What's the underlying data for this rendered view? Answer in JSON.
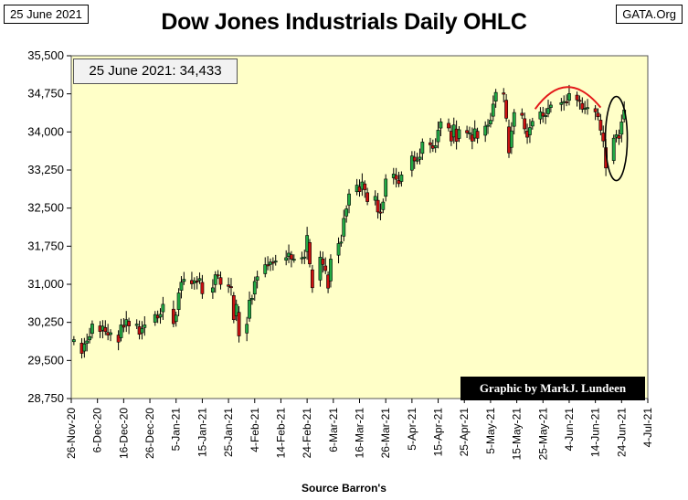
{
  "header": {
    "date_tag": "25 June 2021",
    "source_tag": "GATA.Org",
    "title": "Dow Jones Industrials Daily OHLC"
  },
  "annotations": {
    "value_box": "25 June 2021:  34,433",
    "credit": "Graphic by MarkJ. Lundeen",
    "source": "Source  Barron's"
  },
  "colors": {
    "plot_bg": "#ffffc8",
    "up": "#22aa44",
    "down": "#cc1111",
    "annotation": "#e31a1a"
  },
  "chart_data": {
    "type": "candlestick",
    "title": "Dow Jones Industrials Daily OHLC",
    "xlabel": "",
    "ylabel": "",
    "ylim": [
      28750,
      35500
    ],
    "yticks": [
      28750,
      29500,
      30250,
      31000,
      31750,
      32500,
      33250,
      34000,
      34750,
      35500
    ],
    "ytick_labels": [
      "28,750",
      "29,500",
      "30,250",
      "31,000",
      "31,750",
      "32,500",
      "33,250",
      "34,000",
      "34,750",
      "35,500"
    ],
    "xticks": [
      "2020-11-26",
      "2020-12-06",
      "2020-12-16",
      "2020-12-26",
      "2021-01-05",
      "2021-01-15",
      "2021-01-25",
      "2021-02-04",
      "2021-02-14",
      "2021-02-24",
      "2021-03-06",
      "2021-03-16",
      "2021-03-26",
      "2021-04-05",
      "2021-04-15",
      "2021-04-25",
      "2021-05-05",
      "2021-05-15",
      "2021-05-25",
      "2021-06-04",
      "2021-06-14",
      "2021-06-24",
      "2021-07-04"
    ],
    "xtick_labels": [
      "26-Nov-20",
      "6-Dec-20",
      "16-Dec-20",
      "26-Dec-20",
      "5-Jan-21",
      "15-Jan-21",
      "25-Jan-21",
      "4-Feb-21",
      "14-Feb-21",
      "24-Feb-21",
      "6-Mar-21",
      "16-Mar-21",
      "26-Mar-21",
      "5-Apr-21",
      "15-Apr-21",
      "25-Apr-21",
      "5-May-21",
      "15-May-21",
      "25-May-21",
      "4-Jun-21",
      "14-Jun-21",
      "24-Jun-21",
      "4-Jul-21"
    ],
    "grid": false,
    "closes": [
      [
        "2020-11-27",
        29910
      ],
      [
        "2020-11-30",
        29639
      ],
      [
        "2020-12-01",
        29824
      ],
      [
        "2020-12-02",
        29884
      ],
      [
        "2020-12-03",
        29970
      ],
      [
        "2020-12-04",
        30218
      ],
      [
        "2020-12-07",
        30070
      ],
      [
        "2020-12-08",
        30174
      ],
      [
        "2020-12-09",
        30068
      ],
      [
        "2020-12-10",
        29999
      ],
      [
        "2020-12-11",
        30046
      ],
      [
        "2020-12-14",
        29861
      ],
      [
        "2020-12-15",
        30200
      ],
      [
        "2020-12-16",
        30155
      ],
      [
        "2020-12-17",
        30304
      ],
      [
        "2020-12-18",
        30179
      ],
      [
        "2020-12-21",
        30216
      ],
      [
        "2020-12-22",
        30015
      ],
      [
        "2020-12-23",
        30130
      ],
      [
        "2020-12-24",
        30200
      ],
      [
        "2020-12-28",
        30404
      ],
      [
        "2020-12-29",
        30336
      ],
      [
        "2020-12-30",
        30409
      ],
      [
        "2020-12-31",
        30606
      ],
      [
        "2021-01-04",
        30224
      ],
      [
        "2021-01-05",
        30392
      ],
      [
        "2021-01-06",
        30829
      ],
      [
        "2021-01-07",
        31041
      ],
      [
        "2021-01-08",
        31098
      ],
      [
        "2021-01-11",
        31009
      ],
      [
        "2021-01-12",
        31068
      ],
      [
        "2021-01-13",
        31061
      ],
      [
        "2021-01-14",
        31112
      ],
      [
        "2021-01-15",
        30814
      ],
      [
        "2021-01-19",
        30930
      ],
      [
        "2021-01-20",
        31188
      ],
      [
        "2021-01-21",
        31176
      ],
      [
        "2021-01-22",
        30997
      ],
      [
        "2021-01-25",
        30960
      ],
      [
        "2021-01-26",
        30937
      ],
      [
        "2021-01-27",
        30303
      ],
      [
        "2021-01-28",
        30603
      ],
      [
        "2021-01-29",
        29983
      ],
      [
        "2021-02-01",
        30212
      ],
      [
        "2021-02-02",
        30688
      ],
      [
        "2021-02-03",
        30724
      ],
      [
        "2021-02-04",
        31056
      ],
      [
        "2021-02-05",
        31148
      ],
      [
        "2021-02-08",
        31386
      ],
      [
        "2021-02-09",
        31375
      ],
      [
        "2021-02-10",
        31438
      ],
      [
        "2021-02-11",
        31431
      ],
      [
        "2021-02-12",
        31458
      ],
      [
        "2021-02-16",
        31523
      ],
      [
        "2021-02-17",
        31613
      ],
      [
        "2021-02-18",
        31494
      ],
      [
        "2021-02-19",
        31494
      ],
      [
        "2021-02-22",
        31522
      ],
      [
        "2021-02-23",
        31537
      ],
      [
        "2021-02-24",
        31962
      ],
      [
        "2021-02-25",
        31402
      ],
      [
        "2021-02-26",
        30932
      ],
      [
        "2021-03-01",
        31535
      ],
      [
        "2021-03-02",
        31391
      ],
      [
        "2021-03-03",
        31270
      ],
      [
        "2021-03-04",
        30924
      ],
      [
        "2021-03-05",
        31496
      ],
      [
        "2021-03-08",
        31802
      ],
      [
        "2021-03-09",
        31832
      ],
      [
        "2021-03-10",
        32297
      ],
      [
        "2021-03-11",
        32485
      ],
      [
        "2021-03-12",
        32779
      ],
      [
        "2021-03-15",
        32953
      ],
      [
        "2021-03-16",
        32825
      ],
      [
        "2021-03-17",
        33015
      ],
      [
        "2021-03-18",
        32862
      ],
      [
        "2021-03-19",
        32628
      ],
      [
        "2021-03-22",
        32731
      ],
      [
        "2021-03-23",
        32423
      ],
      [
        "2021-03-24",
        32420
      ],
      [
        "2021-03-25",
        32619
      ],
      [
        "2021-03-26",
        33072
      ],
      [
        "2021-03-29",
        33171
      ],
      [
        "2021-03-30",
        33067
      ],
      [
        "2021-03-31",
        32982
      ],
      [
        "2021-04-01",
        33153
      ],
      [
        "2021-04-05",
        33527
      ],
      [
        "2021-04-06",
        33430
      ],
      [
        "2021-04-07",
        33446
      ],
      [
        "2021-04-08",
        33503
      ],
      [
        "2021-04-09",
        33801
      ],
      [
        "2021-04-12",
        33746
      ],
      [
        "2021-04-13",
        33677
      ],
      [
        "2021-04-14",
        33730
      ],
      [
        "2021-04-15",
        34035
      ],
      [
        "2021-04-16",
        34200
      ],
      [
        "2021-04-19",
        34078
      ],
      [
        "2021-04-20",
        33821
      ],
      [
        "2021-04-21",
        34137
      ],
      [
        "2021-04-22",
        33815
      ],
      [
        "2021-04-23",
        34043
      ],
      [
        "2021-04-26",
        33981
      ],
      [
        "2021-04-27",
        33984
      ],
      [
        "2021-04-28",
        33820
      ],
      [
        "2021-04-29",
        34060
      ],
      [
        "2021-04-30",
        33875
      ],
      [
        "2021-05-03",
        34113
      ],
      [
        "2021-05-04",
        34133
      ],
      [
        "2021-05-05",
        34230
      ],
      [
        "2021-05-06",
        34548
      ],
      [
        "2021-05-07",
        34778
      ],
      [
        "2021-05-10",
        34743
      ],
      [
        "2021-05-11",
        34270
      ],
      [
        "2021-05-12",
        33587
      ],
      [
        "2021-05-13",
        34021
      ],
      [
        "2021-05-14",
        34382
      ],
      [
        "2021-05-17",
        34327
      ],
      [
        "2021-05-18",
        34060
      ],
      [
        "2021-05-19",
        33896
      ],
      [
        "2021-05-20",
        34084
      ],
      [
        "2021-05-21",
        34208
      ],
      [
        "2021-05-24",
        34394
      ],
      [
        "2021-05-25",
        34312
      ],
      [
        "2021-05-26",
        34323
      ],
      [
        "2021-05-27",
        34465
      ],
      [
        "2021-05-28",
        34529
      ],
      [
        "2021-06-01",
        34575
      ],
      [
        "2021-06-02",
        34600
      ],
      [
        "2021-06-03",
        34577
      ],
      [
        "2021-06-04",
        34756
      ],
      [
        "2021-06-07",
        34630
      ],
      [
        "2021-06-08",
        34600
      ],
      [
        "2021-06-09",
        34447
      ],
      [
        "2021-06-10",
        34466
      ],
      [
        "2021-06-11",
        34480
      ],
      [
        "2021-06-14",
        34394
      ],
      [
        "2021-06-15",
        34299
      ],
      [
        "2021-06-16",
        34033
      ],
      [
        "2021-06-17",
        33823
      ],
      [
        "2021-06-18",
        33290
      ],
      [
        "2021-06-21",
        33877
      ],
      [
        "2021-06-22",
        33945
      ],
      [
        "2021-06-23",
        33874
      ],
      [
        "2021-06-24",
        34196
      ],
      [
        "2021-06-25",
        34433
      ]
    ]
  }
}
